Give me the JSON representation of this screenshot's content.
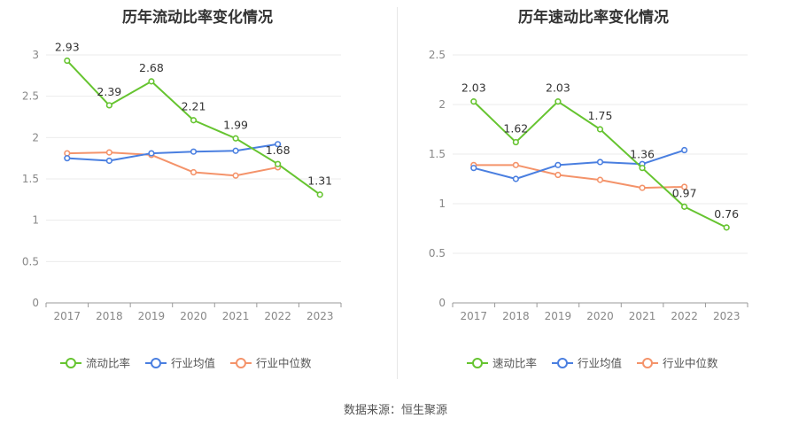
{
  "source": "数据来源：恒生聚源",
  "colors": {
    "primary": "#66c430",
    "industry_avg": "#4a7fe0",
    "industry_median": "#f4936a"
  },
  "chart_data": [
    {
      "type": "line",
      "title": "历年流动比率变化情况",
      "x": [
        "2017",
        "2018",
        "2019",
        "2020",
        "2021",
        "2022",
        "2023"
      ],
      "ylim": [
        0,
        3
      ],
      "yticks": [
        0,
        0.5,
        1,
        1.5,
        2,
        2.5,
        3
      ],
      "yticks_labels": [
        "0",
        "0.5",
        "1",
        "1.5",
        "2",
        "2.5",
        "3"
      ],
      "legend": "bottom",
      "grid": true,
      "series": [
        {
          "name": "流动比率",
          "color": "#66c430",
          "labeled": true,
          "values": [
            2.93,
            2.39,
            2.68,
            2.21,
            1.99,
            1.68,
            1.31
          ],
          "labels": [
            "2.93",
            "2.39",
            "2.68",
            "2.21",
            "1.99",
            "1.68",
            "1.31"
          ]
        },
        {
          "name": "行业均值",
          "color": "#4a7fe0",
          "labeled": false,
          "values": [
            1.75,
            1.72,
            1.81,
            1.83,
            1.84,
            1.92,
            null
          ]
        },
        {
          "name": "行业中位数",
          "color": "#f4936a",
          "labeled": false,
          "values": [
            1.81,
            1.82,
            1.79,
            1.58,
            1.54,
            1.64,
            null
          ]
        }
      ]
    },
    {
      "type": "line",
      "title": "历年速动比率变化情况",
      "x": [
        "2017",
        "2018",
        "2019",
        "2020",
        "2021",
        "2022",
        "2023"
      ],
      "ylim": [
        0,
        2.5
      ],
      "yticks": [
        0,
        0.5,
        1,
        1.5,
        2,
        2.5
      ],
      "yticks_labels": [
        "0",
        "0.5",
        "1",
        "1.5",
        "2",
        "2.5"
      ],
      "legend": "bottom",
      "grid": true,
      "series": [
        {
          "name": "速动比率",
          "color": "#66c430",
          "labeled": true,
          "values": [
            2.03,
            1.62,
            2.03,
            1.75,
            1.36,
            0.97,
            0.76
          ],
          "labels": [
            "2.03",
            "1.62",
            "2.03",
            "1.75",
            "1.36",
            "0.97",
            "0.76"
          ]
        },
        {
          "name": "行业均值",
          "color": "#4a7fe0",
          "labeled": false,
          "values": [
            1.36,
            1.25,
            1.39,
            1.42,
            1.4,
            1.54,
            null
          ]
        },
        {
          "name": "行业中位数",
          "color": "#f4936a",
          "labeled": false,
          "values": [
            1.39,
            1.39,
            1.29,
            1.24,
            1.16,
            1.17,
            null
          ]
        }
      ]
    }
  ]
}
